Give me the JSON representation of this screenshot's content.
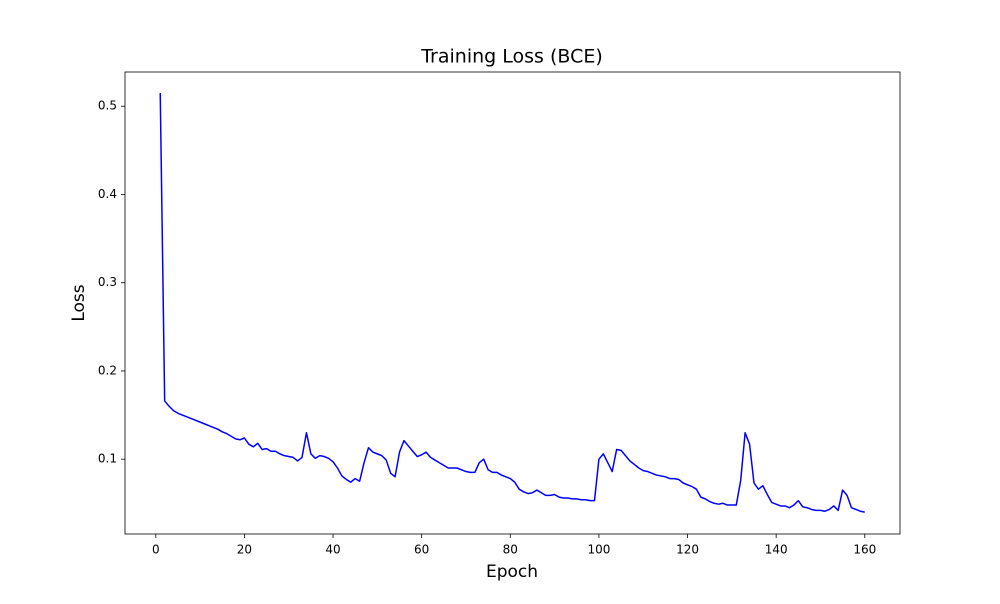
{
  "chart_data": {
    "type": "line",
    "title": "Training Loss (BCE)",
    "xlabel": "Epoch",
    "ylabel": "Loss",
    "x": [
      1,
      2,
      3,
      4,
      5,
      6,
      7,
      8,
      9,
      10,
      11,
      12,
      13,
      14,
      15,
      16,
      17,
      18,
      19,
      20,
      21,
      22,
      23,
      24,
      25,
      26,
      27,
      28,
      29,
      30,
      31,
      32,
      33,
      34,
      35,
      36,
      37,
      38,
      39,
      40,
      41,
      42,
      43,
      44,
      45,
      46,
      47,
      48,
      49,
      50,
      51,
      52,
      53,
      54,
      55,
      56,
      57,
      58,
      59,
      60,
      61,
      62,
      63,
      64,
      65,
      66,
      67,
      68,
      69,
      70,
      71,
      72,
      73,
      74,
      75,
      76,
      77,
      78,
      79,
      80,
      81,
      82,
      83,
      84,
      85,
      86,
      87,
      88,
      89,
      90,
      91,
      92,
      93,
      94,
      95,
      96,
      97,
      98,
      99,
      100,
      101,
      102,
      103,
      104,
      105,
      106,
      107,
      108,
      109,
      110,
      111,
      112,
      113,
      114,
      115,
      116,
      117,
      118,
      119,
      120,
      121,
      122,
      123,
      124,
      125,
      126,
      127,
      128,
      129,
      130,
      131,
      132,
      133,
      134,
      135,
      136,
      137,
      138,
      139,
      140,
      141,
      142,
      143,
      144,
      145,
      146,
      147,
      148,
      149,
      150,
      151,
      152,
      153,
      154,
      155,
      156,
      157,
      158,
      159,
      160
    ],
    "series": [
      {
        "name": "Loss",
        "color": "#0000ff",
        "values": [
          0.515,
          0.166,
          0.16,
          0.155,
          0.152,
          0.15,
          0.148,
          0.146,
          0.144,
          0.142,
          0.14,
          0.138,
          0.136,
          0.134,
          0.131,
          0.129,
          0.126,
          0.123,
          0.122,
          0.124,
          0.117,
          0.114,
          0.118,
          0.111,
          0.112,
          0.109,
          0.109,
          0.106,
          0.104,
          0.103,
          0.102,
          0.098,
          0.102,
          0.13,
          0.106,
          0.101,
          0.104,
          0.103,
          0.101,
          0.097,
          0.09,
          0.081,
          0.077,
          0.074,
          0.078,
          0.075,
          0.096,
          0.113,
          0.108,
          0.106,
          0.104,
          0.099,
          0.084,
          0.08,
          0.108,
          0.121,
          0.115,
          0.109,
          0.103,
          0.105,
          0.108,
          0.102,
          0.099,
          0.096,
          0.093,
          0.09,
          0.09,
          0.09,
          0.088,
          0.086,
          0.085,
          0.085,
          0.096,
          0.1,
          0.088,
          0.085,
          0.085,
          0.082,
          0.08,
          0.078,
          0.074,
          0.066,
          0.063,
          0.061,
          0.062,
          0.065,
          0.062,
          0.059,
          0.059,
          0.06,
          0.057,
          0.056,
          0.056,
          0.055,
          0.055,
          0.054,
          0.054,
          0.053,
          0.053,
          0.1,
          0.106,
          0.096,
          0.086,
          0.111,
          0.11,
          0.104,
          0.098,
          0.094,
          0.09,
          0.087,
          0.086,
          0.084,
          0.082,
          0.081,
          0.08,
          0.078,
          0.078,
          0.077,
          0.073,
          0.071,
          0.069,
          0.066,
          0.057,
          0.055,
          0.052,
          0.05,
          0.049,
          0.05,
          0.048,
          0.048,
          0.048,
          0.076,
          0.13,
          0.117,
          0.073,
          0.066,
          0.07,
          0.06,
          0.051,
          0.049,
          0.047,
          0.047,
          0.045,
          0.048,
          0.053,
          0.046,
          0.045,
          0.043,
          0.042,
          0.042,
          0.041,
          0.043,
          0.047,
          0.042,
          0.065,
          0.059,
          0.045,
          0.043,
          0.041,
          0.04
        ]
      }
    ],
    "xlim": [
      -6.95,
      167.95
    ],
    "ylim": [
      0.0152,
      0.5388
    ],
    "xticks": [
      0,
      20,
      40,
      60,
      80,
      100,
      120,
      140,
      160
    ],
    "yticks": [
      0.1,
      0.2,
      0.3,
      0.4,
      0.5
    ],
    "grid": false
  }
}
